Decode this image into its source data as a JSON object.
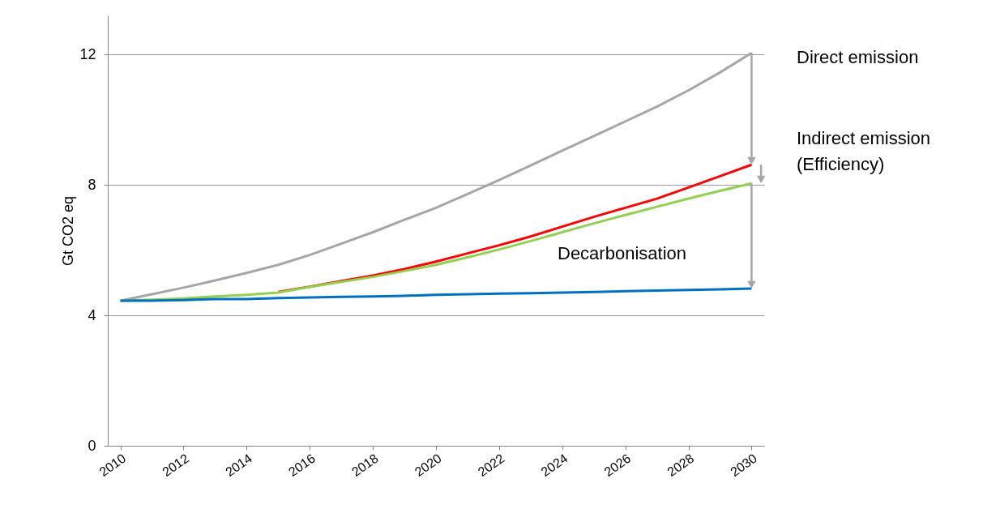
{
  "chart_data": {
    "type": "line",
    "ylabel": "Gt CO2 eq",
    "x": [
      2010,
      2011,
      2012,
      2013,
      2014,
      2015,
      2016,
      2017,
      2018,
      2019,
      2020,
      2021,
      2022,
      2023,
      2024,
      2025,
      2026,
      2027,
      2028,
      2029,
      2030
    ],
    "series": [
      {
        "color": "#a6a6a6",
        "values": [
          4.45,
          4.65,
          4.85,
          5.07,
          5.3,
          5.55,
          5.85,
          6.2,
          6.55,
          6.93,
          7.3,
          7.72,
          8.15,
          8.6,
          9.05,
          9.5,
          9.95,
          10.4,
          10.9,
          11.45,
          12.05
        ]
      },
      {
        "color": "#ff0000",
        "values": [
          null,
          null,
          null,
          null,
          null,
          4.72,
          4.88,
          5.05,
          5.22,
          5.42,
          5.65,
          5.9,
          6.15,
          6.42,
          6.72,
          7.02,
          7.3,
          7.58,
          7.92,
          8.27,
          8.62
        ]
      },
      {
        "color": "#92d050",
        "values": [
          4.45,
          4.48,
          4.52,
          4.58,
          4.63,
          4.7,
          4.87,
          5.03,
          5.18,
          5.36,
          5.55,
          5.78,
          6.02,
          6.28,
          6.55,
          6.82,
          7.08,
          7.33,
          7.58,
          7.82,
          8.05
        ]
      },
      {
        "color": "#0070c0",
        "values": [
          4.45,
          4.45,
          4.47,
          4.5,
          4.5,
          4.53,
          4.55,
          4.57,
          4.58,
          4.6,
          4.63,
          4.65,
          4.67,
          4.68,
          4.7,
          4.72,
          4.74,
          4.76,
          4.78,
          4.8,
          4.82
        ]
      }
    ],
    "xlim": [
      2009.6,
      2030.4
    ],
    "xticks": [
      2010,
      2012,
      2014,
      2016,
      2018,
      2020,
      2022,
      2024,
      2026,
      2028,
      2030
    ],
    "ylim": [
      0,
      13.2
    ],
    "yticks": [
      0,
      4,
      8,
      12
    ],
    "grid": "y",
    "marker": "none",
    "line_style": "solid",
    "annotations": [
      "Direct emission",
      "Indirect emission\n(Efficiency)",
      "Decarbonisation"
    ]
  }
}
